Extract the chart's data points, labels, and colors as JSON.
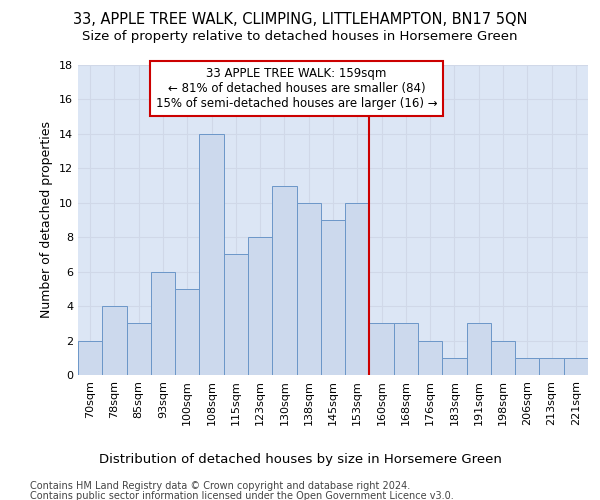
{
  "title": "33, APPLE TREE WALK, CLIMPING, LITTLEHAMPTON, BN17 5QN",
  "subtitle": "Size of property relative to detached houses in Horsemere Green",
  "xlabel": "Distribution of detached houses by size in Horsemere Green",
  "ylabel": "Number of detached properties",
  "footer1": "Contains HM Land Registry data © Crown copyright and database right 2024.",
  "footer2": "Contains public sector information licensed under the Open Government Licence v3.0.",
  "bar_labels": [
    "70sqm",
    "78sqm",
    "85sqm",
    "93sqm",
    "100sqm",
    "108sqm",
    "115sqm",
    "123sqm",
    "130sqm",
    "138sqm",
    "145sqm",
    "153sqm",
    "160sqm",
    "168sqm",
    "176sqm",
    "183sqm",
    "191sqm",
    "198sqm",
    "206sqm",
    "213sqm",
    "221sqm"
  ],
  "bar_values": [
    2,
    4,
    3,
    6,
    5,
    14,
    7,
    8,
    11,
    10,
    9,
    10,
    3,
    3,
    2,
    1,
    3,
    2,
    1,
    1,
    1
  ],
  "bar_color": "#ccd9ed",
  "bar_edge_color": "#6b96c8",
  "grid_color": "#d0d8e8",
  "background_color": "#dce6f5",
  "annotation_text": "33 APPLE TREE WALK: 159sqm\n← 81% of detached houses are smaller (84)\n15% of semi-detached houses are larger (16) →",
  "annotation_box_color": "#ffffff",
  "annotation_box_edge_color": "#cc0000",
  "ylim": [
    0,
    18
  ],
  "yticks": [
    0,
    2,
    4,
    6,
    8,
    10,
    12,
    14,
    16,
    18
  ],
  "title_fontsize": 10.5,
  "subtitle_fontsize": 9.5,
  "ylabel_fontsize": 9,
  "xlabel_fontsize": 9.5,
  "tick_fontsize": 8,
  "annotation_fontsize": 8.5,
  "footer_fontsize": 7
}
